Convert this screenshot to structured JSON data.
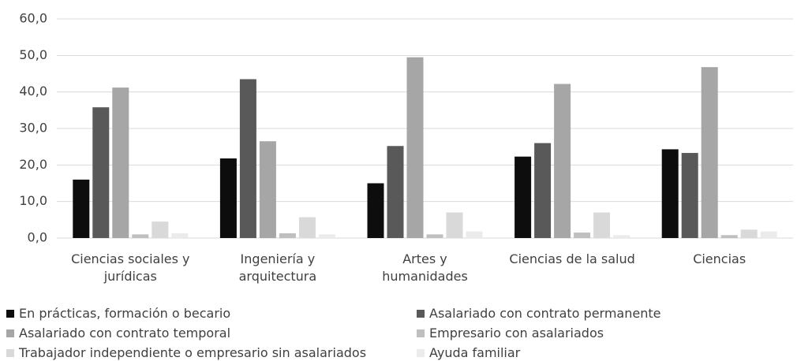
{
  "chart_data": {
    "type": "bar",
    "categories": [
      "Ciencias sociales y jurídicas",
      "Ingeniería y arquitectura",
      "Artes y humanidades",
      "Ciencias de la salud",
      "Ciencias"
    ],
    "series": [
      {
        "name": "En prácticas, formación o becario",
        "color": "#0d0d0d",
        "values": [
          16.0,
          21.8,
          15.0,
          22.3,
          24.3
        ]
      },
      {
        "name": "Asalariado con contrato permanente",
        "color": "#595959",
        "values": [
          35.8,
          43.5,
          25.2,
          26.0,
          23.3
        ]
      },
      {
        "name": "Asalariado con contrato temporal",
        "color": "#a6a6a6",
        "values": [
          41.2,
          26.5,
          49.5,
          42.2,
          46.8
        ]
      },
      {
        "name": "Empresario con asalariados",
        "color": "#bfbfbf",
        "values": [
          1.0,
          1.3,
          1.0,
          1.5,
          0.8
        ]
      },
      {
        "name": "Trabajador independiente o empresario sin asalariados",
        "color": "#d9d9d9",
        "values": [
          4.5,
          5.7,
          7.0,
          7.0,
          2.3
        ]
      },
      {
        "name": "Ayuda familiar",
        "color": "#ebebeb",
        "values": [
          1.3,
          1.0,
          1.8,
          0.8,
          1.8
        ]
      }
    ],
    "ylim": [
      0,
      60
    ],
    "yticks": [
      {
        "value": 0,
        "label": "0,0"
      },
      {
        "value": 10,
        "label": "10,0"
      },
      {
        "value": 20,
        "label": "20,0"
      },
      {
        "value": 30,
        "label": "30,0"
      },
      {
        "value": 40,
        "label": "40,0"
      },
      {
        "value": 50,
        "label": "50,0"
      },
      {
        "value": 60,
        "label": "60,0"
      }
    ],
    "grid": true
  }
}
